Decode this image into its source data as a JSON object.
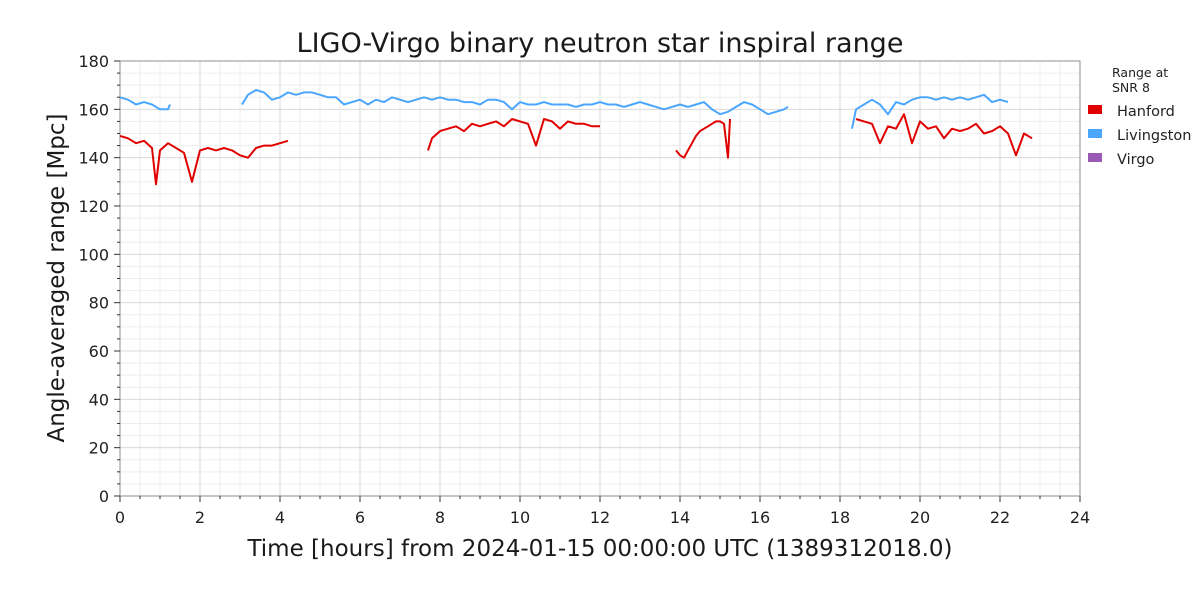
{
  "chart_data": {
    "type": "line",
    "title": "LIGO-Virgo binary neutron star inspiral range",
    "xlabel": "Time [hours] from 2024-01-15 00:00:00 UTC (1389312018.0)",
    "ylabel": "Angle-averaged range [Mpc]",
    "xlim": [
      0,
      24
    ],
    "ylim": [
      0,
      180
    ],
    "x_ticks": [
      "0",
      "2",
      "4",
      "6",
      "8",
      "10",
      "12",
      "14",
      "16",
      "18",
      "20",
      "22",
      "24"
    ],
    "y_ticks": [
      "0",
      "20",
      "40",
      "60",
      "80",
      "100",
      "120",
      "140",
      "160",
      "180"
    ],
    "grid": true,
    "legend": {
      "title": "Range at\nSNR 8",
      "placement": "outside-right-top",
      "entries": [
        {
          "name": "Hanford",
          "color": "#e00000"
        },
        {
          "name": "Livingston",
          "color": "#4ba6ff"
        },
        {
          "name": "Virgo",
          "color": "#9b59b6"
        }
      ]
    },
    "series": [
      {
        "name": "Hanford",
        "color": "#e00000",
        "segments": [
          {
            "x": [
              0.0,
              0.2,
              0.4,
              0.6,
              0.8,
              0.9,
              1.0,
              1.2,
              1.4,
              1.6,
              1.8,
              2.0,
              2.2,
              2.4,
              2.6,
              2.8,
              3.0,
              3.2,
              3.4,
              3.6,
              3.8,
              4.0,
              4.2
            ],
            "y": [
              149,
              148,
              146,
              147,
              144,
              129,
              143,
              146,
              144,
              142,
              130,
              143,
              144,
              143,
              144,
              143,
              141,
              140,
              144,
              145,
              145,
              146,
              147
            ]
          },
          {
            "x": [
              7.7,
              7.8,
              8.0,
              8.2,
              8.4,
              8.6,
              8.8,
              9.0,
              9.2,
              9.4,
              9.6,
              9.8,
              10.0,
              10.2,
              10.4,
              10.6,
              10.8,
              11.0,
              11.2,
              11.4,
              11.6,
              11.8,
              12.0
            ],
            "y": [
              143,
              148,
              151,
              152,
              153,
              151,
              154,
              153,
              154,
              155,
              153,
              156,
              155,
              154,
              145,
              156,
              155,
              152,
              155,
              154,
              154,
              153,
              153
            ]
          },
          {
            "x": [
              13.9,
              14.0,
              14.1,
              14.2,
              14.3,
              14.4,
              14.5,
              14.6,
              14.7,
              14.8,
              14.9,
              15.0,
              15.1,
              15.2,
              15.25
            ],
            "y": [
              143,
              141,
              140,
              143,
              146,
              149,
              151,
              152,
              153,
              154,
              155,
              155,
              154,
              140,
              156
            ]
          },
          {
            "x": [
              18.4,
              18.6,
              18.8,
              19.0,
              19.2,
              19.4,
              19.6,
              19.8,
              20.0,
              20.2,
              20.4,
              20.6,
              20.8,
              21.0,
              21.2,
              21.4,
              21.6,
              21.8,
              22.0,
              22.2,
              22.4,
              22.6,
              22.8
            ],
            "y": [
              156,
              155,
              154,
              146,
              153,
              152,
              158,
              146,
              155,
              152,
              153,
              148,
              152,
              151,
              152,
              154,
              150,
              151,
              153,
              150,
              141,
              150,
              148
            ]
          }
        ]
      },
      {
        "name": "Livingston",
        "color": "#4ba6ff",
        "segments": [
          {
            "x": [
              0.0,
              0.2,
              0.4,
              0.6,
              0.8,
              1.0,
              1.2,
              1.25
            ],
            "y": [
              165,
              164,
              162,
              163,
              162,
              160,
              160,
              162
            ]
          },
          {
            "x": [
              3.05,
              3.2,
              3.4,
              3.6,
              3.8,
              4.0,
              4.2,
              4.4,
              4.6,
              4.8,
              5.0,
              5.2,
              5.4,
              5.6,
              5.8,
              6.0,
              6.2,
              6.4,
              6.6,
              6.8,
              7.0,
              7.2,
              7.4,
              7.6,
              7.8,
              8.0,
              8.2,
              8.4,
              8.6,
              8.8,
              9.0,
              9.2,
              9.4,
              9.6,
              9.8,
              10.0,
              10.2,
              10.4,
              10.6,
              10.8,
              11.0,
              11.2,
              11.4,
              11.6,
              11.8,
              12.0,
              12.2,
              12.4,
              12.6,
              12.8,
              13.0,
              13.2,
              13.4,
              13.6,
              13.8,
              14.0,
              14.2,
              14.4,
              14.6,
              14.8,
              15.0,
              15.2,
              15.4,
              15.6,
              15.8,
              16.0,
              16.2,
              16.4,
              16.6,
              16.7
            ],
            "y": [
              162,
              166,
              168,
              167,
              164,
              165,
              167,
              166,
              167,
              167,
              166,
              165,
              165,
              162,
              163,
              164,
              162,
              164,
              163,
              165,
              164,
              163,
              164,
              165,
              164,
              165,
              164,
              164,
              163,
              163,
              162,
              164,
              164,
              163,
              160,
              163,
              162,
              162,
              163,
              162,
              162,
              162,
              161,
              162,
              162,
              163,
              162,
              162,
              161,
              162,
              163,
              162,
              161,
              160,
              161,
              162,
              161,
              162,
              163,
              160,
              158,
              159,
              161,
              163,
              162,
              160,
              158,
              159,
              160,
              161
            ]
          },
          {
            "x": [
              18.3,
              18.4,
              18.6,
              18.8,
              19.0,
              19.2,
              19.4,
              19.6,
              19.8,
              20.0,
              20.2,
              20.4,
              20.6,
              20.8,
              21.0,
              21.2,
              21.4,
              21.6,
              21.8,
              22.0,
              22.2
            ],
            "y": [
              152,
              160,
              162,
              164,
              162,
              158,
              163,
              162,
              164,
              165,
              165,
              164,
              165,
              164,
              165,
              164,
              165,
              166,
              163,
              164,
              163
            ]
          }
        ]
      },
      {
        "name": "Virgo",
        "color": "#9b59b6",
        "segments": []
      }
    ]
  }
}
